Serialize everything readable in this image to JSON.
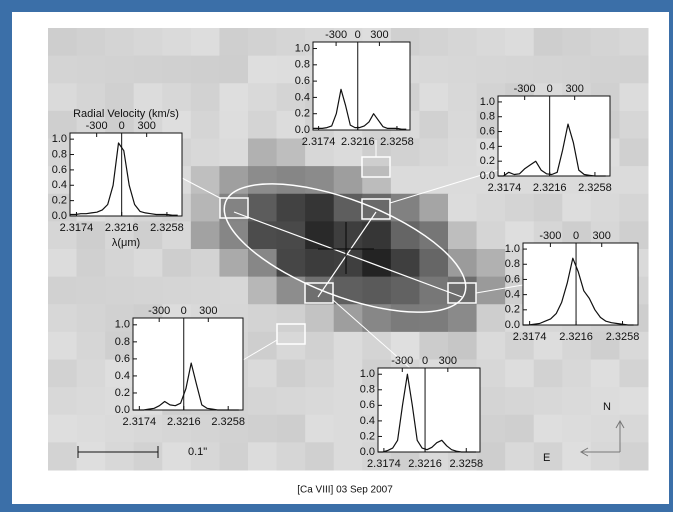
{
  "caption": "[Ca VIII] 03 Sep 2007",
  "scale_bar_label": "0.1\"",
  "compass": {
    "north": "N",
    "east": "E"
  },
  "chart_data": [
    {
      "type": "line",
      "x2_label": "Radial Velocity (km/s)",
      "x_label": "λ(μm)",
      "x": [
        2.3168,
        2.3173,
        2.3178,
        2.3183,
        2.3188,
        2.3193,
        2.3198,
        2.3203,
        2.3208,
        2.3213,
        2.3218,
        2.3223,
        2.3228,
        2.3233,
        2.3238,
        2.3243,
        2.3248,
        2.3253,
        2.3258,
        2.3263,
        2.3268
      ],
      "values": [
        0.02,
        0.02,
        0.03,
        0.03,
        0.04,
        0.05,
        0.08,
        0.15,
        0.4,
        0.95,
        0.85,
        0.4,
        0.15,
        0.06,
        0.04,
        0.03,
        0.02,
        0.02,
        0.02,
        0.01,
        0.01
      ],
      "color": "#111111",
      "xlim": [
        2.3168,
        2.3272
      ],
      "xticks": [
        2.3174,
        2.3216,
        2.3258
      ],
      "x2lim": [
        -620,
        724
      ],
      "x2ticks": [
        -300,
        0,
        300
      ],
      "ylim": [
        0,
        1.08
      ],
      "yticks": [
        {
          "value": 0,
          "label": "0.0"
        },
        0.2,
        0.4,
        0.6,
        0.8,
        {
          "value": 1,
          "label": "1.0"
        }
      ]
    },
    {
      "type": "line",
      "x": [
        2.3168,
        2.3173,
        2.3178,
        2.3183,
        2.3188,
        2.3193,
        2.3198,
        2.3203,
        2.3208,
        2.3213,
        2.3218,
        2.3223,
        2.3228,
        2.3233,
        2.3238,
        2.3243,
        2.3248,
        2.3253,
        2.3258,
        2.3263,
        2.3268
      ],
      "values": [
        0.02,
        0.02,
        0.02,
        0.03,
        0.05,
        0.2,
        0.5,
        0.3,
        0.06,
        0.03,
        0.03,
        0.05,
        0.1,
        0.2,
        0.12,
        0.04,
        0.02,
        0.02,
        0.02,
        0.01,
        0.01
      ],
      "color": "#111111",
      "xlim": [
        2.3168,
        2.3272
      ],
      "xticks": [
        2.3174,
        2.3216,
        2.3258
      ],
      "x2lim": [
        -620,
        724
      ],
      "x2ticks": [
        -300,
        0,
        300
      ],
      "ylim": [
        0,
        1.08
      ],
      "yticks": [
        {
          "value": 0,
          "label": "0.0"
        },
        0.2,
        0.4,
        0.6,
        0.8,
        {
          "value": 1,
          "label": "1.0"
        }
      ]
    },
    {
      "type": "line",
      "x": [
        2.3168,
        2.3173,
        2.3178,
        2.3183,
        2.3188,
        2.3193,
        2.3198,
        2.3203,
        2.3208,
        2.3213,
        2.3218,
        2.3223,
        2.3228,
        2.3233,
        2.3238,
        2.3243,
        2.3248,
        2.3253,
        2.3258,
        2.3263,
        2.3268
      ],
      "values": [
        0.0,
        0.0,
        0.05,
        0.02,
        0.03,
        0.1,
        0.15,
        0.2,
        0.08,
        0.03,
        0.02,
        0.05,
        0.35,
        0.7,
        0.45,
        0.08,
        0.02,
        0.01,
        0.0,
        0.0,
        0.0
      ],
      "color": "#111111",
      "xlim": [
        2.3168,
        2.3272
      ],
      "xticks": [
        2.3174,
        2.3216,
        2.3258
      ],
      "x2lim": [
        -620,
        724
      ],
      "x2ticks": [
        -300,
        0,
        300
      ],
      "ylim": [
        0,
        1.08
      ],
      "yticks": [
        {
          "value": 0,
          "label": "0.0"
        },
        0.2,
        0.4,
        0.6,
        0.8,
        {
          "value": 1,
          "label": "1.0"
        }
      ]
    },
    {
      "type": "line",
      "x": [
        2.3168,
        2.3173,
        2.3178,
        2.3183,
        2.3188,
        2.3193,
        2.3198,
        2.3203,
        2.3208,
        2.3213,
        2.3218,
        2.3223,
        2.3228,
        2.3233,
        2.3238,
        2.3243,
        2.3248,
        2.3253,
        2.3258,
        2.3263,
        2.3268
      ],
      "values": [
        0.0,
        0.0,
        0.01,
        0.02,
        0.05,
        0.08,
        0.15,
        0.3,
        0.55,
        0.88,
        0.7,
        0.45,
        0.35,
        0.2,
        0.1,
        0.05,
        0.03,
        0.02,
        0.01,
        0.0,
        0.0
      ],
      "color": "#111111",
      "xlim": [
        2.3168,
        2.3272
      ],
      "xticks": [
        2.3174,
        2.3216,
        2.3258
      ],
      "x2lim": [
        -620,
        724
      ],
      "x2ticks": [
        -300,
        0,
        300
      ],
      "ylim": [
        0,
        1.08
      ],
      "yticks": [
        {
          "value": 0,
          "label": "0.0"
        },
        0.2,
        0.4,
        0.6,
        0.8,
        {
          "value": 1,
          "label": "1.0"
        }
      ]
    },
    {
      "type": "line",
      "x": [
        2.3168,
        2.3173,
        2.3178,
        2.3183,
        2.3188,
        2.3193,
        2.3198,
        2.3203,
        2.3208,
        2.3213,
        2.3218,
        2.3223,
        2.3228,
        2.3233,
        2.3238,
        2.3243,
        2.3248,
        2.3253,
        2.3258,
        2.3263,
        2.3268
      ],
      "values": [
        0.0,
        0.0,
        0.0,
        0.01,
        0.02,
        0.05,
        0.1,
        0.06,
        0.05,
        0.08,
        0.25,
        0.55,
        0.3,
        0.06,
        0.02,
        0.01,
        0.0,
        0.0,
        0.0,
        0.0,
        0.0
      ],
      "color": "#111111",
      "xlim": [
        2.3168,
        2.3272
      ],
      "xticks": [
        2.3174,
        2.3216,
        2.3258
      ],
      "x2lim": [
        -620,
        724
      ],
      "x2ticks": [
        -300,
        0,
        300
      ],
      "ylim": [
        0,
        1.08
      ],
      "yticks": [
        {
          "value": 0,
          "label": "0.0"
        },
        0.2,
        0.4,
        0.6,
        0.8,
        {
          "value": 1,
          "label": "1.0"
        }
      ]
    },
    {
      "type": "line",
      "x": [
        2.3168,
        2.3173,
        2.3178,
        2.3183,
        2.3188,
        2.3193,
        2.3198,
        2.3203,
        2.3208,
        2.3213,
        2.3218,
        2.3223,
        2.3228,
        2.3233,
        2.3238,
        2.3243,
        2.3248,
        2.3253,
        2.3258,
        2.3263,
        2.3268
      ],
      "values": [
        0.0,
        0.0,
        0.02,
        0.05,
        0.15,
        0.6,
        1.0,
        0.6,
        0.15,
        0.05,
        0.03,
        0.06,
        0.12,
        0.15,
        0.08,
        0.03,
        0.01,
        0.0,
        0.0,
        0.0,
        0.0
      ],
      "color": "#111111",
      "xlim": [
        2.3168,
        2.3272
      ],
      "xticks": [
        2.3174,
        2.3216,
        2.3258
      ],
      "x2lim": [
        -620,
        724
      ],
      "x2ticks": [
        -300,
        0,
        300
      ],
      "ylim": [
        0,
        1.08
      ],
      "yticks": [
        {
          "value": 0,
          "label": "0.0"
        },
        0.2,
        0.4,
        0.6,
        0.8,
        {
          "value": 1,
          "label": "1.0"
        }
      ]
    }
  ]
}
